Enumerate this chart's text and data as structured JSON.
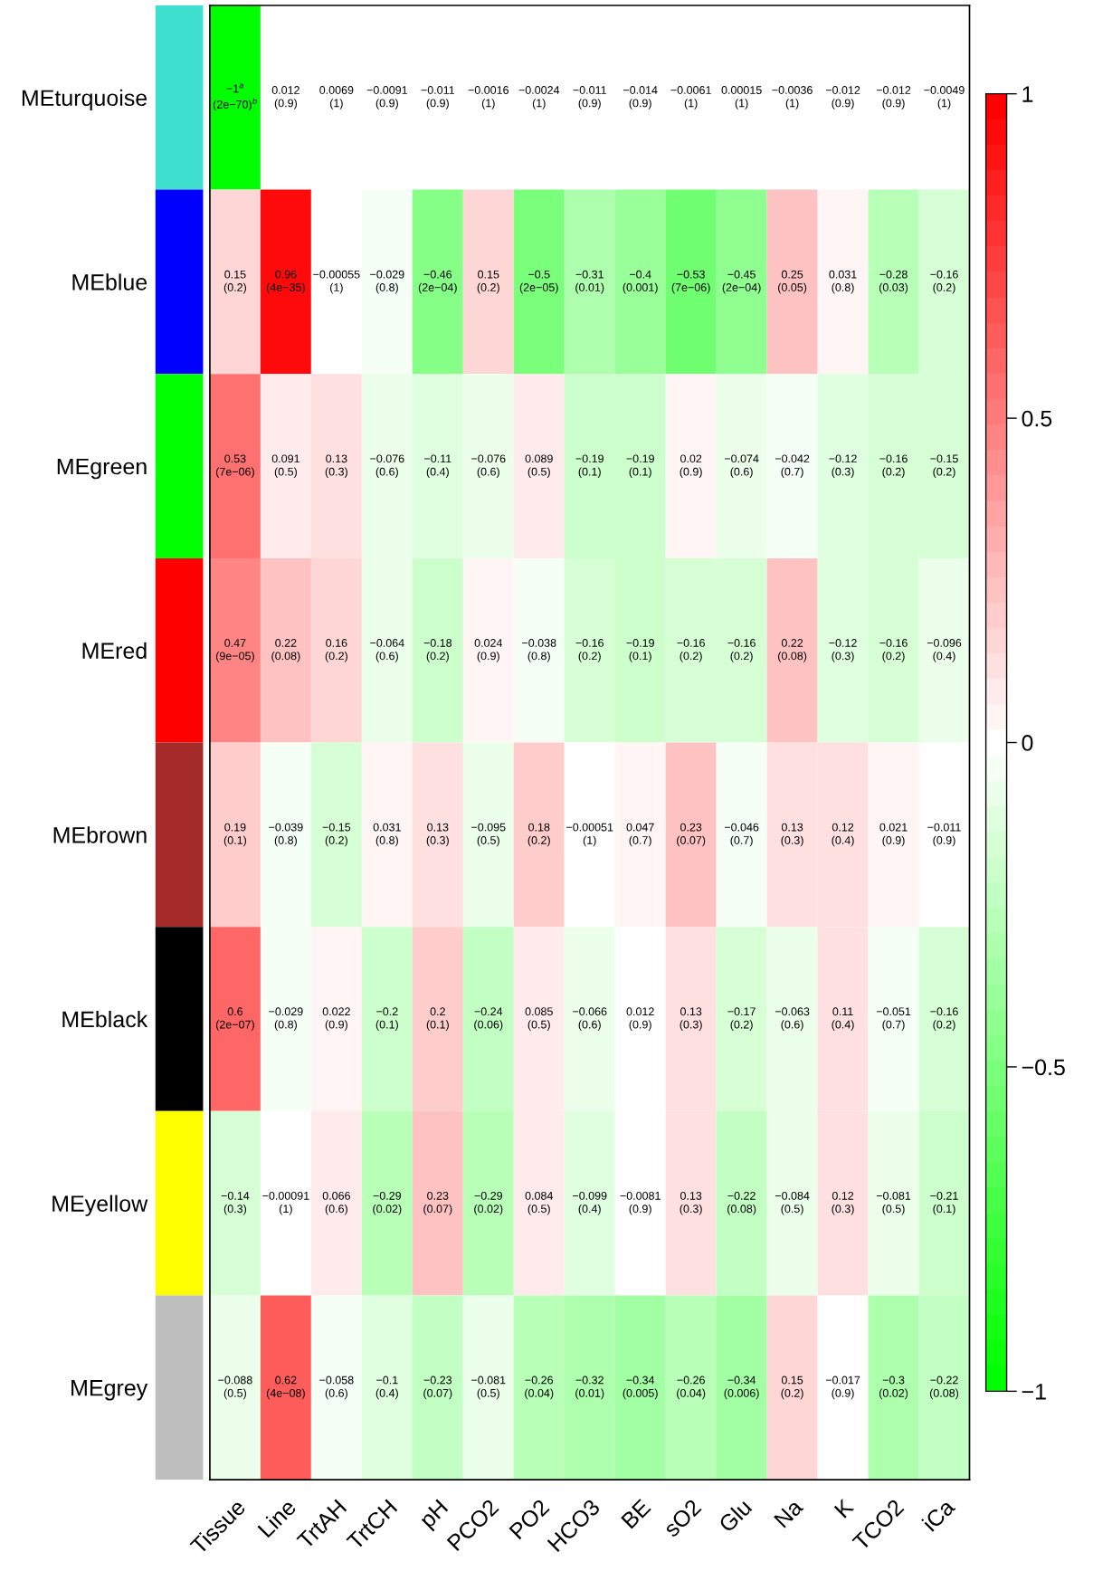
{
  "chart_data": {
    "type": "heatmap",
    "categories": [
      "Tissue",
      "Line",
      "TrtAH",
      "TrtCH",
      "pH",
      "PCO2",
      "PO2",
      "HCO3",
      "BE",
      "sO2",
      "Glu",
      "Na",
      "K",
      "TCO2",
      "iCa"
    ],
    "y_categories": [
      "MEturquoise",
      "MEblue",
      "MEgreen",
      "MEred",
      "MEbrown",
      "MEblack",
      "MEyellow",
      "MEgrey"
    ],
    "cells": [
      [
        -1,
        0.012,
        0.0069,
        -0.0091,
        -0.011,
        -0.0016,
        -0.0024,
        -0.011,
        -0.014,
        -0.0061,
        0.00015,
        -0.0036,
        -0.012,
        -0.012,
        -0.0049
      ],
      [
        0.15,
        0.96,
        -0.00055,
        -0.029,
        -0.46,
        0.15,
        -0.5,
        -0.31,
        -0.4,
        -0.53,
        -0.45,
        0.25,
        0.031,
        -0.28,
        -0.16
      ],
      [
        0.53,
        0.091,
        0.13,
        -0.076,
        -0.11,
        -0.076,
        0.089,
        -0.19,
        -0.19,
        0.02,
        -0.074,
        -0.042,
        -0.12,
        -0.16,
        -0.15
      ],
      [
        0.47,
        0.22,
        0.16,
        -0.064,
        -0.18,
        0.024,
        -0.038,
        -0.16,
        -0.19,
        -0.16,
        -0.16,
        0.22,
        -0.12,
        -0.16,
        -0.096
      ],
      [
        0.19,
        -0.039,
        -0.15,
        0.031,
        0.13,
        -0.095,
        0.18,
        -0.00051,
        0.047,
        0.23,
        -0.046,
        0.13,
        0.12,
        0.021,
        -0.011
      ],
      [
        0.6,
        -0.029,
        0.022,
        -0.2,
        0.2,
        -0.24,
        0.085,
        -0.066,
        0.012,
        0.13,
        -0.17,
        -0.063,
        0.11,
        -0.051,
        -0.16
      ],
      [
        -0.14,
        -0.00091,
        0.066,
        -0.29,
        0.23,
        -0.29,
        0.084,
        -0.099,
        -0.0081,
        0.13,
        -0.22,
        -0.084,
        0.12,
        -0.081,
        -0.21
      ],
      [
        -0.088,
        0.62,
        -0.058,
        -0.1,
        -0.23,
        -0.081,
        -0.26,
        -0.32,
        -0.34,
        -0.26,
        -0.34,
        0.15,
        -0.017,
        -0.3,
        -0.22
      ]
    ],
    "cell_labels": [
      [
        "−1$^{a}$\n(2e−70)$^{b}$",
        "0.012\n(0.9)",
        "0.0069\n(1)",
        "−0.0091\n(0.9)",
        "−0.011\n(0.9)",
        "−0.0016\n(1)",
        "−0.0024\n(1)",
        "−0.011\n(0.9)",
        "−0.014\n(0.9)",
        "−0.0061\n(1)",
        "0.00015\n(1)",
        "−0.0036\n(1)",
        "−0.012\n(0.9)",
        "−0.012\n(0.9)",
        "−0.0049\n(1)"
      ],
      [
        "0.15\n(0.2)",
        "0.96\n(4e−35)",
        "−0.00055\n(1)",
        "−0.029\n(0.8)",
        "−0.46\n(2e−04)",
        "0.15\n(0.2)",
        "−0.5\n(2e−05)",
        "−0.31\n(0.01)",
        "−0.4\n(0.001)",
        "−0.53\n(7e−06)",
        "−0.45\n(2e−04)",
        "0.25\n(0.05)",
        "0.031\n(0.8)",
        "−0.28\n(0.03)",
        "−0.16\n(0.2)"
      ],
      [
        "0.53\n(7e−06)",
        "0.091\n(0.5)",
        "0.13\n(0.3)",
        "−0.076\n(0.6)",
        "−0.11\n(0.4)",
        "−0.076\n(0.6)",
        "0.089\n(0.5)",
        "−0.19\n(0.1)",
        "−0.19\n(0.1)",
        "0.02\n(0.9)",
        "−0.074\n(0.6)",
        "−0.042\n(0.7)",
        "−0.12\n(0.3)",
        "−0.16\n(0.2)",
        "−0.15\n(0.2)"
      ],
      [
        "0.47\n(9e−05)",
        "0.22\n(0.08)",
        "0.16\n(0.2)",
        "−0.064\n(0.6)",
        "−0.18\n(0.2)",
        "0.024\n(0.9)",
        "−0.038\n(0.8)",
        "−0.16\n(0.2)",
        "−0.19\n(0.1)",
        "−0.16\n(0.2)",
        "−0.16\n(0.2)",
        "0.22\n(0.08)",
        "−0.12\n(0.3)",
        "−0.16\n(0.2)",
        "−0.096\n(0.4)"
      ],
      [
        "0.19\n(0.1)",
        "−0.039\n(0.8)",
        "−0.15\n(0.2)",
        "0.031\n(0.8)",
        "0.13\n(0.3)",
        "−0.095\n(0.5)",
        "0.18\n(0.2)",
        "−0.00051\n(1)",
        "0.047\n(0.7)",
        "0.23\n(0.07)",
        "−0.046\n(0.7)",
        "0.13\n(0.3)",
        "0.12\n(0.4)",
        "0.021\n(0.9)",
        "−0.011\n(0.9)"
      ],
      [
        "0.6\n(2e−07)",
        "−0.029\n(0.8)",
        "0.022\n(0.9)",
        "−0.2\n(0.1)",
        "0.2\n(0.1)",
        "−0.24\n(0.06)",
        "0.085\n(0.5)",
        "−0.066\n(0.6)",
        "0.012\n(0.9)",
        "0.13\n(0.3)",
        "−0.17\n(0.2)",
        "−0.063\n(0.6)",
        "0.11\n(0.4)",
        "−0.051\n(0.7)",
        "−0.16\n(0.2)"
      ],
      [
        "−0.14\n(0.3)",
        "−0.00091\n(1)",
        "0.066\n(0.6)",
        "−0.29\n(0.02)",
        "0.23\n(0.07)",
        "−0.29\n(0.02)",
        "0.084\n(0.5)",
        "−0.099\n(0.4)",
        "−0.0081\n(0.9)",
        "0.13\n(0.3)",
        "−0.22\n(0.08)",
        "−0.084\n(0.5)",
        "0.12\n(0.3)",
        "−0.081\n(0.5)",
        "−0.21\n(0.1)"
      ],
      [
        "−0.088\n(0.5)",
        "0.62\n(4e−08)",
        "−0.058\n(0.6)",
        "−0.1\n(0.4)",
        "−0.23\n(0.07)",
        "−0.081\n(0.5)",
        "−0.26\n(0.04)",
        "−0.32\n(0.01)",
        "−0.34\n(0.005)",
        "−0.26\n(0.04)",
        "−0.34\n(0.006)",
        "0.15\n(0.2)",
        "−0.017\n(0.9)",
        "−0.3\n(0.02)",
        "−0.22\n(0.08)"
      ]
    ],
    "clim": [
      -1,
      1
    ],
    "cticks": [
      {
        "value": -1,
        "label": "−1"
      },
      {
        "value": -0.5,
        "label": "−0.5"
      },
      {
        "value": 0,
        "label": "0"
      },
      {
        "value": 0.5,
        "label": "0.5"
      },
      {
        "value": 1,
        "label": "1"
      }
    ]
  }
}
